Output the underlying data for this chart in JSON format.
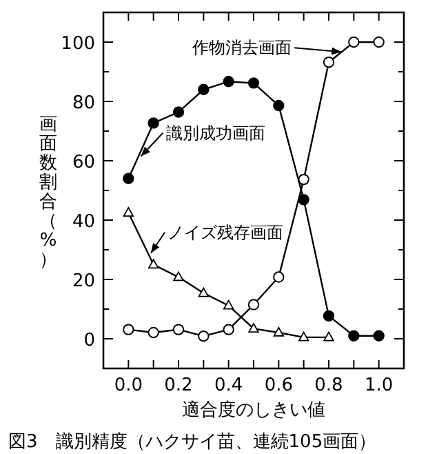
{
  "chart_data": {
    "type": "line",
    "xlabel": "適合度のしきい値",
    "ylabel": "画面数割合（%）",
    "x": [
      0.0,
      0.1,
      0.2,
      0.3,
      0.4,
      0.5,
      0.6,
      0.7,
      0.8,
      0.9,
      1.0
    ],
    "series": [
      {
        "color": "#000000",
        "marker": "circle",
        "colors": [
          "#000000",
          "#000000",
          "#000000",
          "#000000",
          "#000000",
          "#000000",
          "#000000",
          "#000000",
          "#000000",
          "#000000",
          "#000000"
        ],
        "values": [
          54,
          72.7,
          76.4,
          84,
          86.7,
          86.2,
          78.6,
          46.9,
          7.7,
          1,
          1
        ]
      },
      {
        "color": "#000000",
        "marker": "circle",
        "colors": [
          "#ffffff",
          "#ffffff",
          "#ffffff",
          "#ffffff",
          "#ffffff",
          "#ffffff",
          "#ffffff",
          "#ffffff",
          "#ffffff",
          "#ffffff",
          "#ffffff"
        ],
        "values": [
          3.1,
          2.1,
          3.1,
          0.9,
          3.1,
          11.5,
          20.8,
          53.7,
          93.2,
          100,
          100
        ]
      },
      {
        "color": "#000000",
        "marker": "triangle",
        "colors": [
          "#ffffff",
          "#ffffff",
          "#ffffff",
          "#ffffff",
          "#ffffff",
          "#ffffff",
          "#ffffff",
          "#ffffff",
          "#ffffff",
          null,
          null
        ],
        "values": [
          42.5,
          25,
          20.8,
          15.4,
          11.2,
          3.4,
          2.1,
          0.5,
          0.5,
          null,
          null
        ]
      }
    ],
    "xlim": [
      -0.1,
      1.1
    ],
    "ylim": [
      -10,
      110
    ],
    "xticks": [
      {
        "value": 0.0,
        "label": "0.0"
      },
      {
        "value": 0.1,
        "label": null
      },
      {
        "value": 0.2,
        "label": "0.2"
      },
      {
        "value": 0.3,
        "label": null
      },
      {
        "value": 0.4,
        "label": "0.4"
      },
      {
        "value": 0.5,
        "label": null
      },
      {
        "value": 0.6,
        "label": "0.6"
      },
      {
        "value": 0.7,
        "label": null
      },
      {
        "value": 0.8,
        "label": "0.8"
      },
      {
        "value": 0.9,
        "label": null
      },
      {
        "value": 1.0,
        "label": "1.0"
      }
    ],
    "yticks": [
      0,
      {
        "value": 10,
        "label": null
      },
      20,
      {
        "value": 30,
        "label": null
      },
      40,
      {
        "value": 50,
        "label": null
      },
      60,
      {
        "value": 70,
        "label": null
      },
      80,
      {
        "value": 90,
        "label": null
      },
      100
    ],
    "grid": false,
    "annotations": [
      {
        "text": "作物消去画面",
        "x": 0.85,
        "y": 96.7
      },
      {
        "text": "識別成功画面",
        "x": 0.05,
        "y": 61.5
      },
      {
        "text": "ノイズ残存画面",
        "x": 0.09,
        "y": 28.9
      },
      "図3　識別精度（ハクサイ苗、連続105画面）"
    ]
  }
}
